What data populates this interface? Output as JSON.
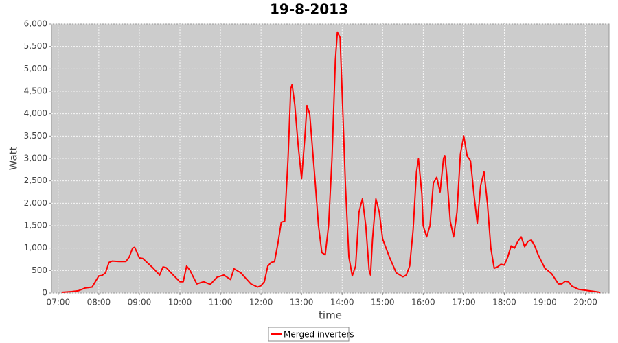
{
  "chart_data": {
    "type": "line",
    "title": "19-8-2013",
    "x_label": "time",
    "y_label": "Watt",
    "x": [
      "07:05",
      "07:20",
      "07:30",
      "07:40",
      "07:50",
      "08:00",
      "08:05",
      "08:10",
      "08:15",
      "08:20",
      "08:30",
      "08:40",
      "08:45",
      "08:50",
      "08:53",
      "09:00",
      "09:05",
      "09:10",
      "09:20",
      "09:30",
      "09:35",
      "09:40",
      "09:50",
      "10:00",
      "10:05",
      "10:10",
      "10:15",
      "10:25",
      "10:35",
      "10:45",
      "10:55",
      "11:05",
      "11:15",
      "11:20",
      "11:30",
      "11:45",
      "11:55",
      "12:00",
      "12:05",
      "12:10",
      "12:15",
      "12:20",
      "12:25",
      "12:30",
      "12:35",
      "12:40",
      "12:44",
      "12:46",
      "12:50",
      "12:55",
      "13:00",
      "13:05",
      "13:08",
      "13:12",
      "13:20",
      "13:25",
      "13:30",
      "13:35",
      "13:40",
      "13:45",
      "13:50",
      "13:53",
      "13:57",
      "14:00",
      "14:05",
      "14:10",
      "14:15",
      "14:20",
      "14:25",
      "14:30",
      "14:35",
      "14:40",
      "14:42",
      "14:45",
      "14:50",
      "14:55",
      "15:00",
      "15:10",
      "15:20",
      "15:30",
      "15:35",
      "15:40",
      "15:45",
      "15:50",
      "15:53",
      "15:58",
      "16:00",
      "16:05",
      "16:10",
      "16:15",
      "16:20",
      "16:25",
      "16:30",
      "16:32",
      "16:35",
      "16:40",
      "16:45",
      "16:50",
      "16:55",
      "17:00",
      "17:05",
      "17:10",
      "17:15",
      "17:20",
      "17:25",
      "17:30",
      "17:35",
      "17:40",
      "17:45",
      "17:50",
      "17:55",
      "18:00",
      "18:05",
      "18:10",
      "18:15",
      "18:20",
      "18:25",
      "18:30",
      "18:35",
      "18:40",
      "18:45",
      "18:50",
      "19:00",
      "19:10",
      "19:20",
      "19:25",
      "19:30",
      "19:35",
      "19:40",
      "19:50",
      "20:00",
      "20:10",
      "20:20",
      "20:22"
    ],
    "series": [
      {
        "name": "Merged inverters",
        "color": "#ff0000",
        "values": [
          15,
          30,
          50,
          110,
          130,
          380,
          390,
          450,
          680,
          710,
          700,
          700,
          800,
          1000,
          1020,
          780,
          770,
          700,
          560,
          400,
          580,
          560,
          400,
          250,
          250,
          600,
          500,
          200,
          250,
          190,
          350,
          400,
          300,
          540,
          450,
          200,
          130,
          160,
          250,
          600,
          680,
          700,
          1100,
          1580,
          1600,
          3000,
          4550,
          4650,
          4200,
          3300,
          2550,
          3500,
          4180,
          4000,
          2500,
          1500,
          900,
          850,
          1500,
          3000,
          5200,
          5820,
          5700,
          4500,
          2400,
          800,
          380,
          600,
          1800,
          2100,
          1500,
          500,
          400,
          1200,
          2100,
          1800,
          1200,
          800,
          450,
          360,
          400,
          600,
          1400,
          2700,
          2990,
          2200,
          1500,
          1250,
          1500,
          2450,
          2580,
          2250,
          3000,
          3060,
          2600,
          1600,
          1250,
          1800,
          3100,
          3500,
          3050,
          2950,
          2200,
          1550,
          2400,
          2700,
          2000,
          1000,
          550,
          580,
          640,
          620,
          800,
          1050,
          1000,
          1150,
          1250,
          1030,
          1150,
          1180,
          1050,
          850,
          550,
          430,
          200,
          200,
          260,
          250,
          150,
          80,
          60,
          40,
          20,
          10
        ]
      }
    ],
    "xlim": [
      "06:50",
      "20:35"
    ],
    "xticks": [
      "07:00",
      "08:00",
      "09:00",
      "10:00",
      "11:00",
      "12:00",
      "13:00",
      "14:00",
      "15:00",
      "16:00",
      "17:00",
      "18:00",
      "19:00",
      "20:00"
    ],
    "ylim": [
      0,
      6000
    ],
    "yticks": [
      0,
      500,
      {
        "value": 1000,
        "label": "1,000"
      },
      {
        "value": 1500,
        "label": "1,500"
      },
      {
        "value": 2000,
        "label": "2,000"
      },
      {
        "value": 2500,
        "label": "2,500"
      },
      {
        "value": 3000,
        "label": "3,000"
      },
      {
        "value": 3500,
        "label": "3,500"
      },
      {
        "value": 4000,
        "label": "4,000"
      },
      {
        "value": 4500,
        "label": "4,500"
      },
      {
        "value": 5000,
        "label": "5,000"
      },
      {
        "value": 5500,
        "label": "5,500"
      },
      {
        "value": 6000,
        "label": "6,000"
      }
    ],
    "grid": true,
    "legend": "bottom"
  }
}
